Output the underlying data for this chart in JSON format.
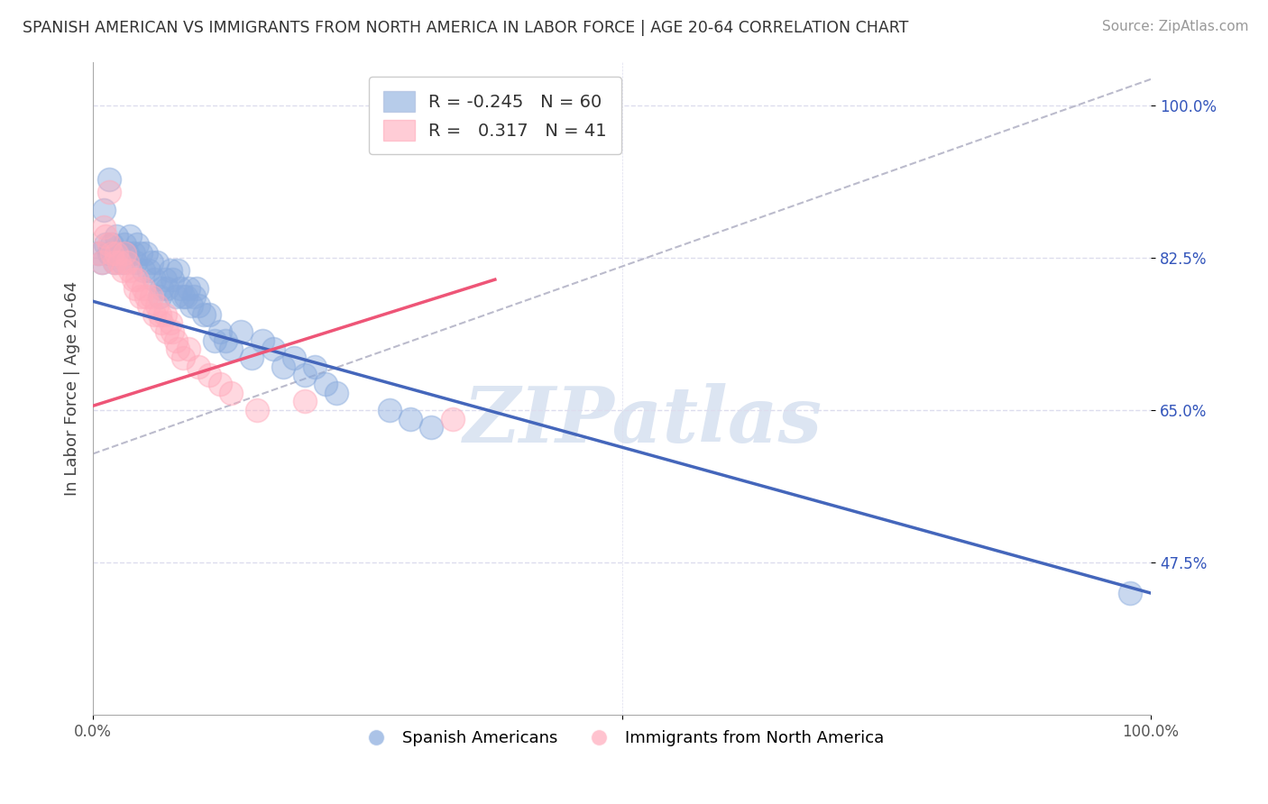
{
  "title": "SPANISH AMERICAN VS IMMIGRANTS FROM NORTH AMERICA IN LABOR FORCE | AGE 20-64 CORRELATION CHART",
  "source": "Source: ZipAtlas.com",
  "ylabel": "In Labor Force | Age 20-64",
  "xlim": [
    0.0,
    1.0
  ],
  "ylim": [
    0.3,
    1.05
  ],
  "yticks": [
    0.475,
    0.65,
    0.825,
    1.0
  ],
  "ytick_labels": [
    "47.5%",
    "65.0%",
    "82.5%",
    "100.0%"
  ],
  "xticks": [
    0.0,
    0.5,
    1.0
  ],
  "xtick_labels": [
    "0.0%",
    "",
    "100.0%"
  ],
  "legend_r1": "-0.245",
  "legend_n1": "60",
  "legend_r2": "0.317",
  "legend_n2": "41",
  "blue_color": "#88aadd",
  "pink_color": "#ffaabb",
  "line_blue": "#4466bb",
  "line_pink": "#ee5577",
  "line_gray": "#bbbbcc",
  "background_color": "#ffffff",
  "grid_color": "#ddddee",
  "watermark": "ZIPatlas",
  "blue_line_x": [
    0.0,
    1.0
  ],
  "blue_line_y": [
    0.775,
    0.44
  ],
  "pink_line_x": [
    0.0,
    0.38
  ],
  "pink_line_y": [
    0.655,
    0.8
  ],
  "gray_line_x": [
    0.0,
    1.0
  ],
  "gray_line_y": [
    0.6,
    1.03
  ],
  "blue_scatter_x": [
    0.005,
    0.008,
    0.01,
    0.012,
    0.015,
    0.018,
    0.02,
    0.022,
    0.025,
    0.028,
    0.03,
    0.032,
    0.035,
    0.038,
    0.04,
    0.042,
    0.045,
    0.048,
    0.05,
    0.053,
    0.055,
    0.058,
    0.06,
    0.063,
    0.065,
    0.068,
    0.07,
    0.073,
    0.075,
    0.078,
    0.08,
    0.083,
    0.085,
    0.088,
    0.09,
    0.093,
    0.095,
    0.098,
    0.1,
    0.105,
    0.11,
    0.115,
    0.12,
    0.125,
    0.13,
    0.14,
    0.15,
    0.16,
    0.17,
    0.18,
    0.19,
    0.2,
    0.21,
    0.22,
    0.23,
    0.28,
    0.3,
    0.32,
    0.98,
    0.015
  ],
  "blue_scatter_y": [
    0.83,
    0.82,
    0.88,
    0.84,
    0.83,
    0.84,
    0.82,
    0.85,
    0.83,
    0.82,
    0.84,
    0.83,
    0.85,
    0.83,
    0.82,
    0.84,
    0.83,
    0.81,
    0.83,
    0.81,
    0.82,
    0.8,
    0.82,
    0.78,
    0.79,
    0.8,
    0.79,
    0.81,
    0.8,
    0.78,
    0.81,
    0.79,
    0.78,
    0.78,
    0.79,
    0.77,
    0.78,
    0.79,
    0.77,
    0.76,
    0.76,
    0.73,
    0.74,
    0.73,
    0.72,
    0.74,
    0.71,
    0.73,
    0.72,
    0.7,
    0.71,
    0.69,
    0.7,
    0.68,
    0.67,
    0.65,
    0.64,
    0.63,
    0.44,
    0.915
  ],
  "pink_scatter_x": [
    0.005,
    0.008,
    0.01,
    0.012,
    0.015,
    0.018,
    0.02,
    0.022,
    0.025,
    0.028,
    0.03,
    0.032,
    0.035,
    0.038,
    0.04,
    0.042,
    0.045,
    0.048,
    0.05,
    0.053,
    0.055,
    0.058,
    0.06,
    0.063,
    0.065,
    0.068,
    0.07,
    0.073,
    0.075,
    0.078,
    0.08,
    0.085,
    0.09,
    0.1,
    0.11,
    0.12,
    0.13,
    0.155,
    0.2,
    0.34,
    0.015
  ],
  "pink_scatter_y": [
    0.83,
    0.82,
    0.86,
    0.85,
    0.84,
    0.83,
    0.82,
    0.83,
    0.82,
    0.81,
    0.83,
    0.82,
    0.81,
    0.8,
    0.79,
    0.8,
    0.78,
    0.79,
    0.78,
    0.77,
    0.78,
    0.76,
    0.77,
    0.76,
    0.75,
    0.76,
    0.74,
    0.75,
    0.74,
    0.73,
    0.72,
    0.71,
    0.72,
    0.7,
    0.69,
    0.68,
    0.67,
    0.65,
    0.66,
    0.64,
    0.9
  ]
}
